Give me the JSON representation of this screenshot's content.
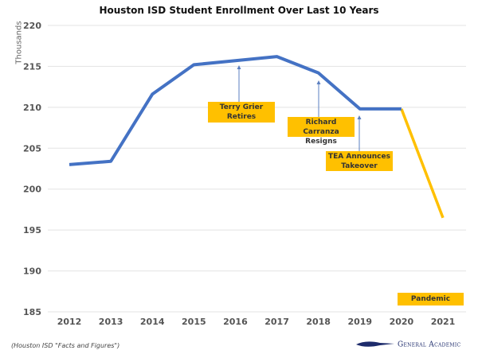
{
  "chart_data": {
    "type": "line",
    "title": "Houston ISD Student Enrollment Over Last 10 Years",
    "ylabel": "Thousands",
    "xlabel": "",
    "categories": [
      "2012",
      "2013",
      "2014",
      "2015",
      "2016",
      "2017",
      "2018",
      "2019",
      "2020",
      "2021"
    ],
    "values": [
      203.0,
      203.4,
      211.6,
      215.2,
      215.7,
      216.2,
      214.2,
      209.8,
      209.8,
      196.5
    ],
    "segment_colors": {
      "pre_pandemic": "#4472C4",
      "pandemic": "#FFC000"
    },
    "pandemic_segment_from": "2020",
    "ylim": [
      185,
      220
    ],
    "yticks": [
      185,
      190,
      195,
      200,
      205,
      210,
      215,
      220
    ],
    "grid": true,
    "annotations": [
      {
        "text_line1": "Terry Grier",
        "text_line2": "Retires",
        "x": "2016"
      },
      {
        "text_line1": "Richard Carranza",
        "text_line2": "Resigns",
        "x": "2018"
      },
      {
        "text_line1": "TEA Announces",
        "text_line2": "Takeover",
        "x": "2019"
      },
      {
        "text_line1": "Pandemic",
        "text_line2": "",
        "x": "2020.5"
      }
    ]
  },
  "footer": {
    "source": "(Houston ISD \"Facts and Figures\")",
    "logo_text": "General Academic"
  }
}
